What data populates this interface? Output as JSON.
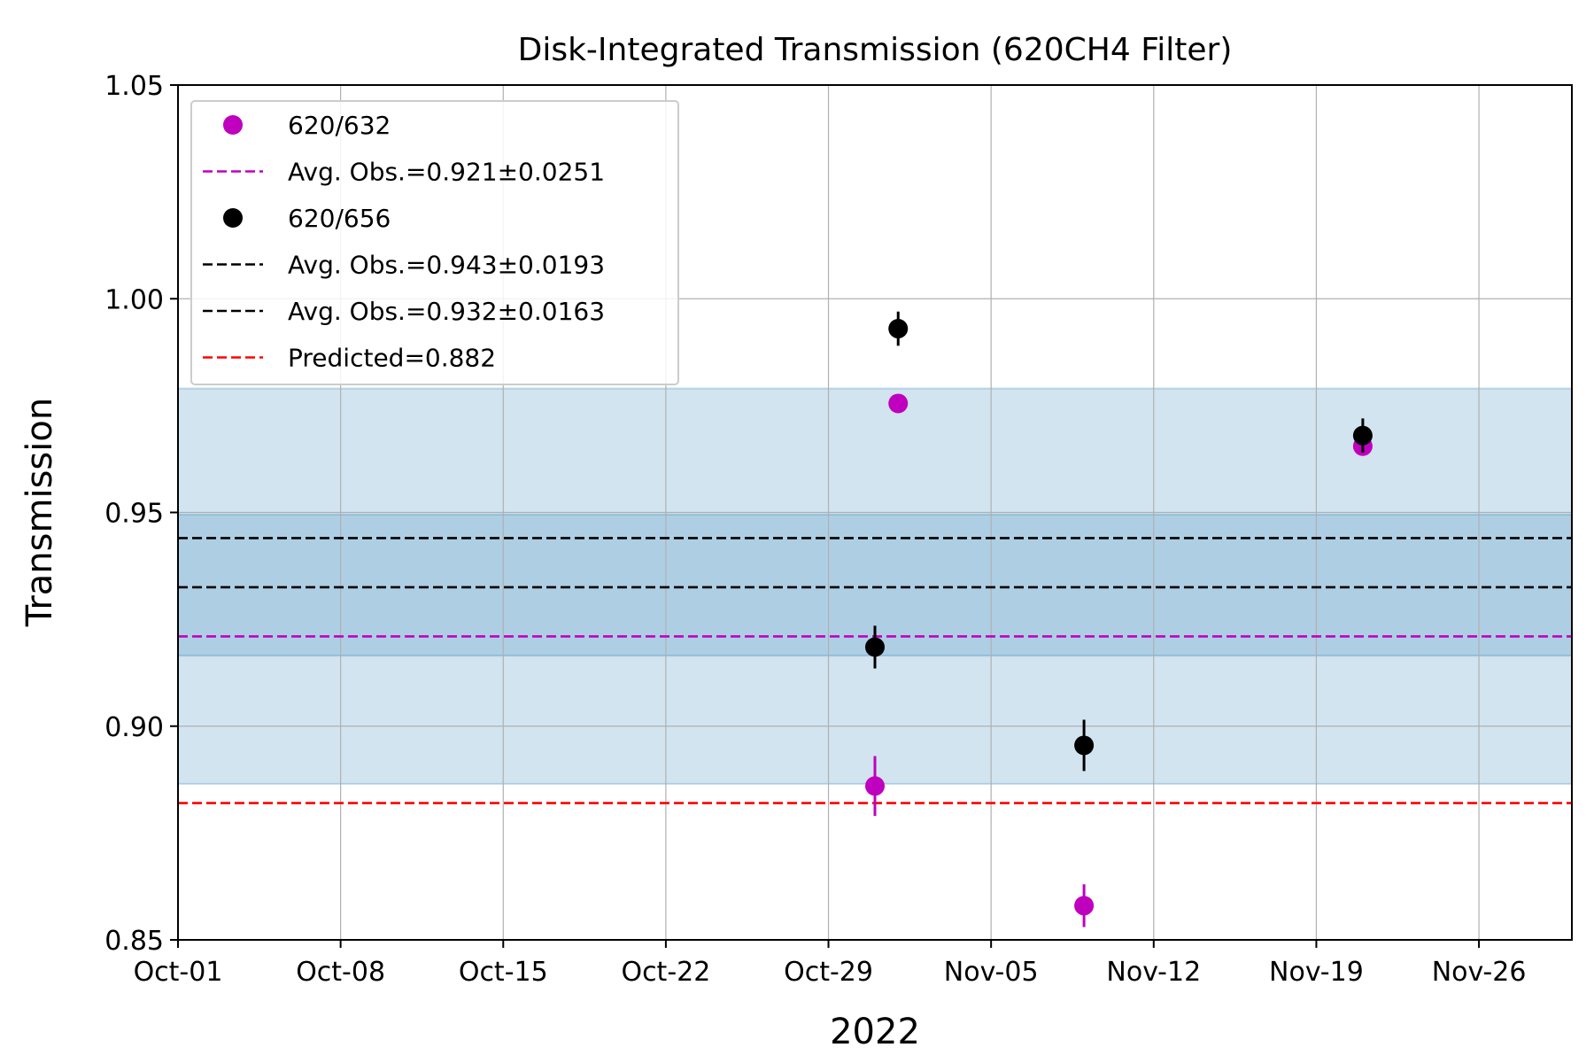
{
  "chart_data": {
    "type": "scatter",
    "title": "Disk-Integrated Transmission (620CH4 Filter)",
    "xlabel": "2022",
    "ylabel": "Transmission",
    "xlim": [
      "2022-10-01",
      "2022-11-30"
    ],
    "ylim": [
      0.85,
      1.05
    ],
    "x_ticks": [
      "Oct-01",
      "Oct-08",
      "Oct-15",
      "Oct-22",
      "Oct-29",
      "Nov-05",
      "Nov-12",
      "Nov-19",
      "Nov-26"
    ],
    "x_tick_dates": [
      "2022-10-01",
      "2022-10-08",
      "2022-10-15",
      "2022-10-22",
      "2022-10-29",
      "2022-11-05",
      "2022-11-12",
      "2022-11-19",
      "2022-11-26"
    ],
    "y_ticks": [
      "0.85",
      "0.90",
      "0.95",
      "1.00",
      "1.05"
    ],
    "y_tick_values": [
      0.85,
      0.9,
      0.95,
      1.0,
      1.05
    ],
    "grid": true,
    "legend_position": "top-left",
    "series": [
      {
        "name": "620/632",
        "color": "#bf00bf",
        "points": [
          {
            "x": "2022-10-31",
            "y": 0.886,
            "err": 0.007
          },
          {
            "x": "2022-11-01",
            "y": 0.9755,
            "err": 0.002
          },
          {
            "x": "2022-11-09",
            "y": 0.858,
            "err": 0.005
          },
          {
            "x": "2022-11-21",
            "y": 0.9655,
            "err": 0.002
          }
        ]
      },
      {
        "name": "620/656",
        "color": "#000000",
        "points": [
          {
            "x": "2022-10-31",
            "y": 0.9185,
            "err": 0.005
          },
          {
            "x": "2022-11-01",
            "y": 0.993,
            "err": 0.004
          },
          {
            "x": "2022-11-09",
            "y": 0.8955,
            "err": 0.006
          },
          {
            "x": "2022-11-21",
            "y": 0.968,
            "err": 0.004
          }
        ]
      }
    ],
    "hlines": [
      {
        "name": "Avg. Obs.=0.921±0.0251",
        "y": 0.921,
        "color": "#bf00bf"
      },
      {
        "name": "Avg. Obs.=0.943±0.0193",
        "y": 0.944,
        "color": "#000000"
      },
      {
        "name": "Avg. Obs.=0.932±0.0163",
        "y": 0.9325,
        "color": "#000000"
      },
      {
        "name": "Predicted=0.882",
        "y": 0.882,
        "color": "#ff0000"
      }
    ],
    "bands": [
      {
        "y0": 0.8865,
        "y1": 0.979,
        "color": "#1f77b4",
        "alpha": 0.2
      },
      {
        "y0": 0.9165,
        "y1": 0.9495,
        "color": "#1f77b4",
        "alpha": 0.2
      }
    ],
    "legend": [
      {
        "label": "620/632",
        "kind": "marker",
        "color": "#bf00bf"
      },
      {
        "label": "Avg. Obs.=0.921±0.0251",
        "kind": "dash",
        "color": "#bf00bf"
      },
      {
        "label": "620/656",
        "kind": "marker",
        "color": "#000000"
      },
      {
        "label": "Avg. Obs.=0.943±0.0193",
        "kind": "dash",
        "color": "#000000"
      },
      {
        "label": "Avg. Obs.=0.932±0.0163",
        "kind": "dash",
        "color": "#000000"
      },
      {
        "label": "Predicted=0.882",
        "kind": "dash",
        "color": "#ff0000"
      }
    ]
  }
}
